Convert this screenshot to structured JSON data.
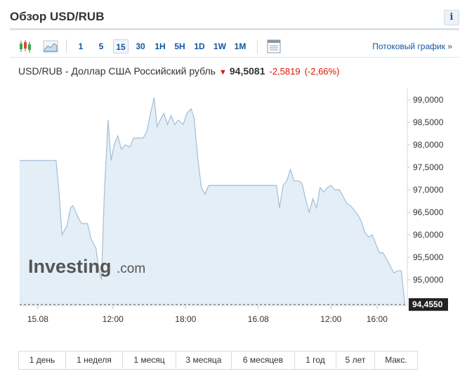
{
  "header": {
    "title": "Обзор USD/RUB",
    "info_label": "i"
  },
  "toolbar": {
    "icons": [
      "candlestick-chart-icon",
      "area-chart-icon",
      "table-view-icon"
    ],
    "timeframes": [
      "1",
      "5",
      "15",
      "30",
      "1H",
      "5H",
      "1D",
      "1W",
      "1M"
    ],
    "active_timeframe": "15",
    "stream_link": "Потоковый график »"
  },
  "quote": {
    "name": "USD/RUB - Доллар США Российский рубль",
    "price": "94,5081",
    "change": "-2,5819",
    "change_pct": "(-2,66%)"
  },
  "watermark": {
    "brand": "Investing",
    "suffix": ".com"
  },
  "chart_data": {
    "type": "area",
    "y_ticks": [
      "99,0000",
      "98,5000",
      "98,0000",
      "97,5000",
      "97,0000",
      "96,5000",
      "96,0000",
      "95,5000",
      "95,0000"
    ],
    "x_ticks": [
      "15.08",
      "12:00",
      "18:00",
      "16.08",
      "12:00",
      "16:00"
    ],
    "last_value_label": "94,4550",
    "ylim": [
      94.45,
      99.1
    ],
    "series": [
      {
        "values": [
          [
            0.0,
            97.65
          ],
          [
            3.0,
            97.65
          ],
          [
            3.2,
            97.1
          ],
          [
            3.5,
            96.0
          ],
          [
            3.9,
            96.2
          ],
          [
            4.2,
            96.6
          ],
          [
            4.4,
            96.65
          ],
          [
            4.8,
            96.4
          ],
          [
            5.1,
            96.25
          ],
          [
            5.6,
            96.25
          ],
          [
            5.9,
            95.9
          ],
          [
            6.3,
            95.7
          ],
          [
            6.5,
            95.3
          ],
          [
            6.75,
            95.0
          ],
          [
            7.0,
            97.0
          ],
          [
            7.3,
            98.55
          ],
          [
            7.55,
            97.65
          ],
          [
            7.8,
            98.0
          ],
          [
            8.1,
            98.2
          ],
          [
            8.4,
            97.9
          ],
          [
            8.7,
            98.0
          ],
          [
            9.1,
            97.95
          ],
          [
            9.4,
            98.15
          ],
          [
            10.2,
            98.15
          ],
          [
            10.5,
            98.3
          ],
          [
            10.8,
            98.7
          ],
          [
            11.1,
            99.05
          ],
          [
            11.35,
            98.4
          ],
          [
            11.6,
            98.55
          ],
          [
            11.9,
            98.7
          ],
          [
            12.2,
            98.45
          ],
          [
            12.5,
            98.65
          ],
          [
            12.8,
            98.45
          ],
          [
            13.1,
            98.55
          ],
          [
            13.5,
            98.45
          ],
          [
            13.8,
            98.7
          ],
          [
            14.15,
            98.8
          ],
          [
            14.4,
            98.6
          ],
          [
            14.7,
            97.7
          ],
          [
            15.0,
            97.05
          ],
          [
            15.3,
            96.9
          ],
          [
            15.6,
            97.1
          ],
          [
            16.3,
            97.1
          ],
          [
            21.2,
            97.1
          ],
          [
            21.45,
            96.6
          ],
          [
            21.75,
            97.1
          ],
          [
            22.05,
            97.2
          ],
          [
            22.35,
            97.45
          ],
          [
            22.65,
            97.2
          ],
          [
            23.0,
            97.2
          ],
          [
            23.3,
            97.15
          ],
          [
            23.6,
            96.8
          ],
          [
            23.9,
            96.5
          ],
          [
            24.2,
            96.8
          ],
          [
            24.5,
            96.6
          ],
          [
            24.8,
            97.05
          ],
          [
            25.1,
            96.95
          ],
          [
            25.4,
            97.05
          ],
          [
            25.7,
            97.1
          ],
          [
            26.0,
            97.0
          ],
          [
            26.4,
            97.0
          ],
          [
            26.7,
            96.85
          ],
          [
            27.0,
            96.7
          ],
          [
            27.3,
            96.65
          ],
          [
            27.6,
            96.55
          ],
          [
            27.9,
            96.45
          ],
          [
            28.2,
            96.3
          ],
          [
            28.5,
            96.05
          ],
          [
            28.8,
            95.95
          ],
          [
            29.1,
            96.0
          ],
          [
            29.4,
            95.8
          ],
          [
            29.7,
            95.6
          ],
          [
            30.0,
            95.6
          ],
          [
            30.3,
            95.45
          ],
          [
            30.6,
            95.3
          ],
          [
            30.9,
            95.15
          ],
          [
            31.2,
            95.2
          ],
          [
            31.5,
            95.2
          ],
          [
            31.8,
            94.45
          ]
        ]
      }
    ],
    "x_tick_positions": [
      1.5,
      7.7,
      13.7,
      19.7,
      25.7,
      29.5
    ],
    "xlim": [
      0,
      32
    ]
  },
  "ranges": [
    "1 день",
    "1 неделя",
    "1 месяц",
    "3 месяца",
    "6 месяцев",
    "1 год",
    "5 лет",
    "Макс."
  ],
  "colors": {
    "accent": "#1256a0",
    "negative": "#d91400",
    "area_fill": "#e4eef6",
    "area_line": "#a3bed6"
  }
}
